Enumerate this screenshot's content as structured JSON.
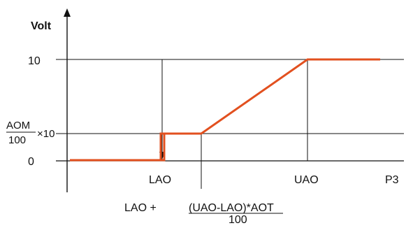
{
  "diagram": {
    "y_axis_title": "Volt",
    "x_axis_title": "P3",
    "y_levels": {
      "top": "10",
      "zero": "0"
    },
    "aom_fraction": {
      "numerator": "AOM",
      "denominator": "100",
      "suffix": "×10"
    },
    "x_markers": {
      "lao": "LAO",
      "uao": "UAO"
    },
    "formula": {
      "prefix": "LAO + ",
      "numerator": "(UAO-LAO)*AOT",
      "denominator": "100"
    },
    "colors": {
      "curve": "#e2501f",
      "axes": "#111111"
    }
  }
}
